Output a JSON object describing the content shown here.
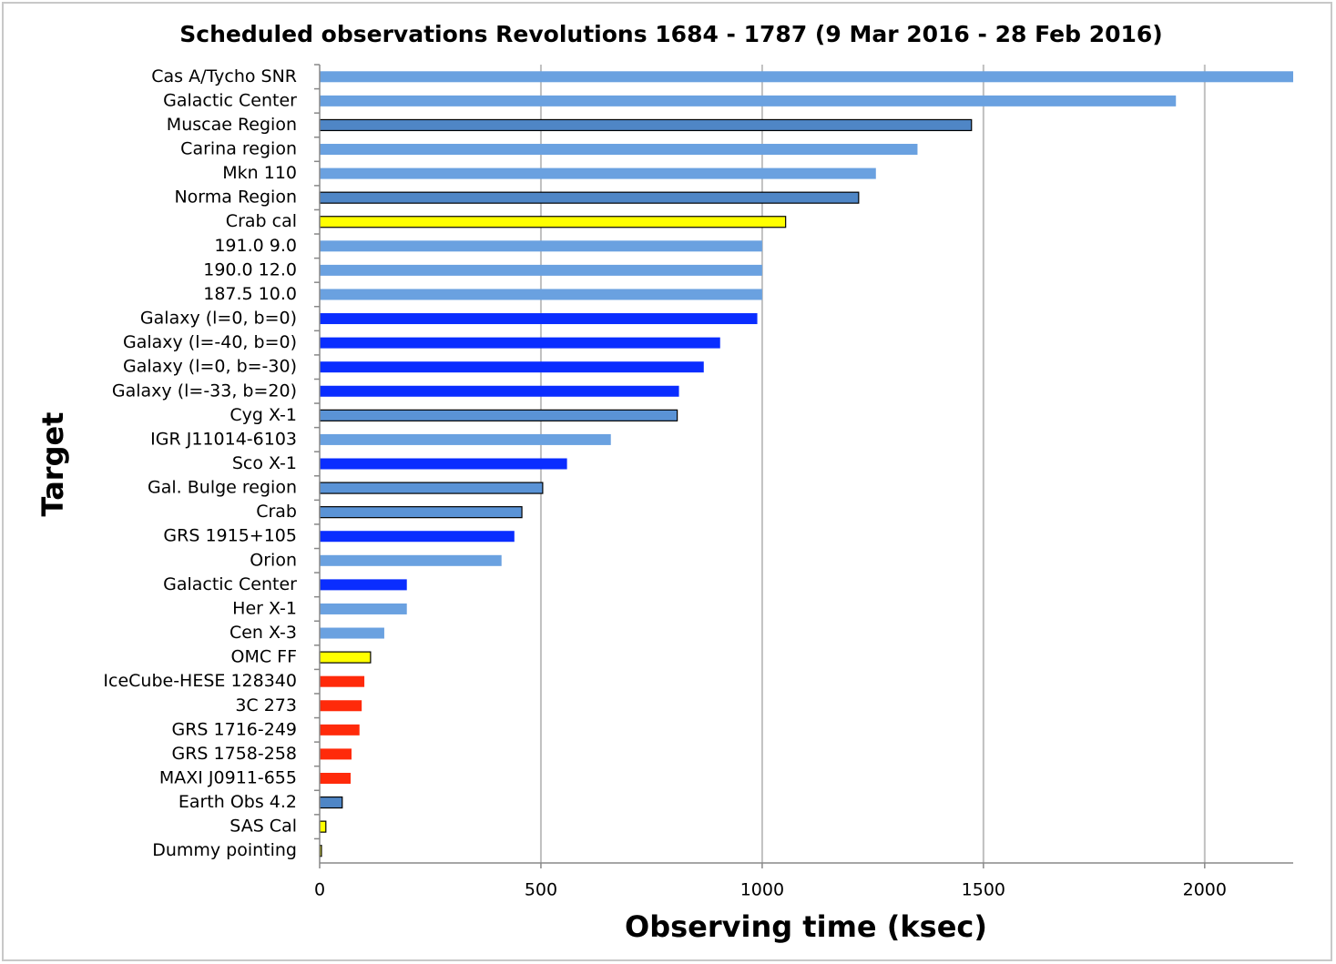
{
  "chart_data": {
    "type": "barh",
    "title": "Scheduled observations Revolutions 1684 - 1787 (9 Mar 2016 - 28 Feb 2016)",
    "xlabel": "Observing time (ksec)",
    "ylabel": "Target",
    "categories": [
      "Cas A/Tycho SNR",
      "Galactic Center",
      "Muscae Region",
      "Carina region",
      "Mkn 110",
      "Norma Region",
      "Crab cal",
      "191.0 9.0",
      "190.0 12.0",
      "187.5 10.0",
      "Galaxy (l=0, b=0)",
      "Galaxy (l=-40, b=0)",
      "Galaxy (l=0, b=-30)",
      "Galaxy (l=-33, b=20)",
      "Cyg X-1",
      "IGR J11014-6103",
      "Sco X-1",
      "Gal. Bulge region",
      "Crab",
      "GRS 1915+105",
      "Orion",
      "Galactic Center",
      "Her X-1",
      "Cen X-3",
      "OMC FF",
      "IceCube-HESE 128340",
      "3C 273",
      "GRS 1716-249",
      "GRS 1758-258",
      "MAXI J0911-655",
      "Earth Obs 4.2",
      "SAS Cal",
      "Dummy pointing"
    ],
    "values": [
      2200,
      1935,
      1473,
      1351,
      1257,
      1218,
      1053,
      1000,
      1000,
      1000,
      989,
      905,
      868,
      812,
      808,
      658,
      559,
      504,
      457,
      440,
      411,
      197,
      197,
      146,
      115,
      101,
      95,
      90,
      72,
      70,
      51,
      14,
      4
    ],
    "colors": [
      "#6aa1e0",
      "#6aa1e0",
      "#4f86c6",
      "#6aa1e0",
      "#6aa1e0",
      "#4f86c6",
      "#ffff00",
      "#6aa1e0",
      "#6aa1e0",
      "#6aa1e0",
      "#0a2dff",
      "#0a2dff",
      "#0a2dff",
      "#0a2dff",
      "#5a93d6",
      "#6aa1e0",
      "#0a2dff",
      "#5a93d6",
      "#5a93d6",
      "#0a2dff",
      "#6aa1e0",
      "#0a2dff",
      "#6aa1e0",
      "#6aa1e0",
      "#ffff00",
      "#ff2a0a",
      "#ff2a0a",
      "#ff2a0a",
      "#ff2a0a",
      "#ff2a0a",
      "#4f86c6",
      "#ffff00",
      "#ffff00"
    ],
    "edgecolors": [
      "none",
      "none",
      "#000000",
      "none",
      "none",
      "#000000",
      "#000000",
      "none",
      "none",
      "none",
      "none",
      "none",
      "none",
      "none",
      "#000000",
      "none",
      "none",
      "#000000",
      "#000000",
      "none",
      "none",
      "none",
      "none",
      "none",
      "#000000",
      "none",
      "none",
      "none",
      "none",
      "none",
      "#000000",
      "#000000",
      "#000000"
    ],
    "xlim": [
      0,
      2200
    ],
    "xticks": [
      0,
      500,
      1000,
      1500,
      2000
    ],
    "grid": true
  }
}
